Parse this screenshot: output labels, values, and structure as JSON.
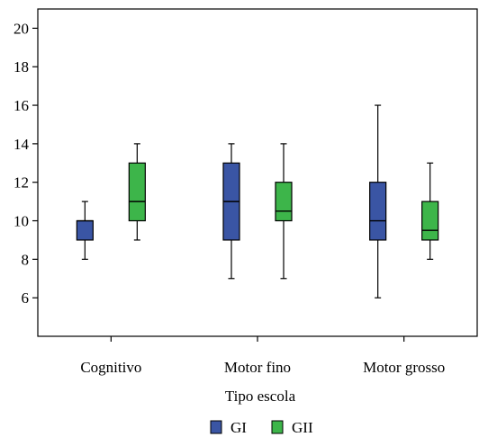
{
  "chart_data": {
    "type": "boxplot",
    "categories": [
      "Cognitivo",
      "Motor fino",
      "Motor grosso"
    ],
    "xlabel": "Tipo escola",
    "ylabel": "",
    "ylim": [
      4,
      21
    ],
    "yticks": [
      6,
      8,
      10,
      12,
      14,
      16,
      18,
      20
    ],
    "grid": false,
    "legend_position": "bottom",
    "series": [
      {
        "name": "GI",
        "color": "#3a55a4",
        "boxes": [
          {
            "min": 8,
            "q1": 9,
            "median": 10,
            "q3": 10,
            "max": 11
          },
          {
            "min": 7,
            "q1": 9,
            "median": 11,
            "q3": 13,
            "max": 14
          },
          {
            "min": 6,
            "q1": 9,
            "median": 10,
            "q3": 12,
            "max": 16
          }
        ]
      },
      {
        "name": "GII",
        "color": "#3db54a",
        "boxes": [
          {
            "min": 9,
            "q1": 10,
            "median": 11,
            "q3": 13,
            "max": 14
          },
          {
            "min": 7,
            "q1": 10,
            "median": 10.5,
            "q3": 12,
            "max": 14
          },
          {
            "min": 8,
            "q1": 9,
            "median": 9.5,
            "q3": 11,
            "max": 13
          }
        ]
      }
    ]
  }
}
